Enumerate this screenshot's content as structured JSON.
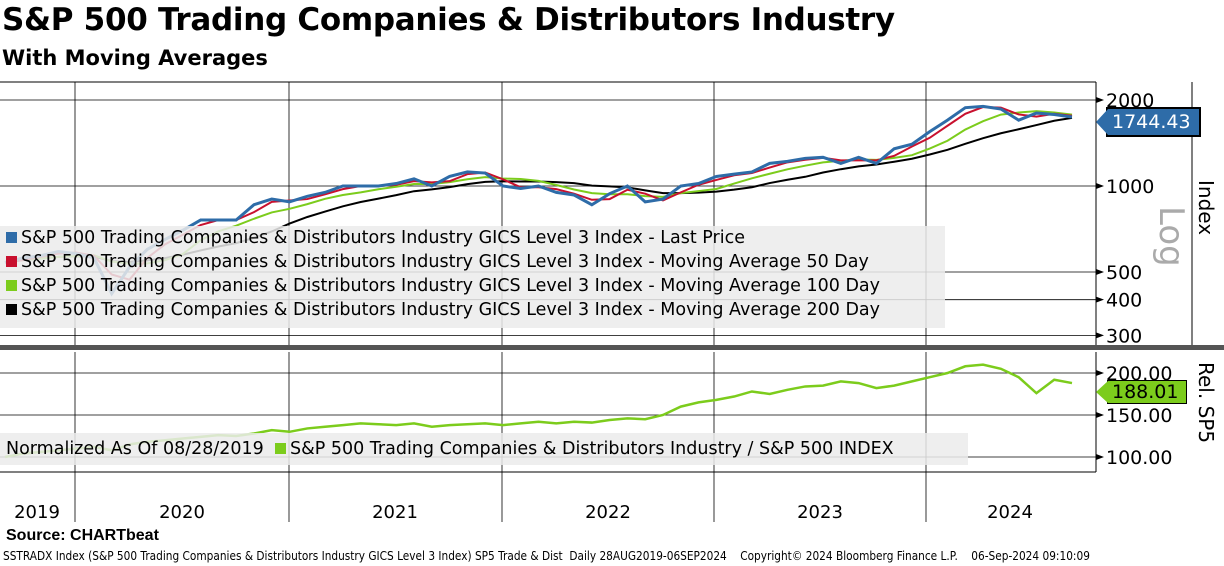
{
  "header": {
    "title": "S&P 500 Trading Companies & Distributors Industry",
    "subtitle": "With Moving Averages"
  },
  "colors": {
    "price": "#2e6ca8",
    "ma50": "#c8102e",
    "ma100": "#7ccc1c",
    "ma200": "#000000",
    "rel": "#7ccc1c"
  },
  "chart_data": [
    {
      "type": "line",
      "scale": "log",
      "ylabel": "Index",
      "scale_label": "Log",
      "yticks": [
        300,
        400,
        500,
        1000,
        2000
      ],
      "ylim": [
        280,
        2150
      ],
      "x": [
        "2019-09",
        "2019-10",
        "2019-11",
        "2019-12",
        "2020-01",
        "2020-02",
        "2020-03",
        "2020-04",
        "2020-05",
        "2020-06",
        "2020-07",
        "2020-08",
        "2020-09",
        "2020-10",
        "2020-11",
        "2020-12",
        "2021-01",
        "2021-02",
        "2021-03",
        "2021-04",
        "2021-05",
        "2021-06",
        "2021-07",
        "2021-08",
        "2021-09",
        "2021-10",
        "2021-11",
        "2021-12",
        "2022-01",
        "2022-02",
        "2022-03",
        "2022-04",
        "2022-05",
        "2022-06",
        "2022-07",
        "2022-08",
        "2022-09",
        "2022-10",
        "2022-11",
        "2022-12",
        "2023-01",
        "2023-02",
        "2023-03",
        "2023-04",
        "2023-05",
        "2023-06",
        "2023-07",
        "2023-08",
        "2023-09",
        "2023-10",
        "2023-11",
        "2023-12",
        "2024-01",
        "2024-02",
        "2024-03",
        "2024-04",
        "2024-05",
        "2024-06",
        "2024-07",
        "2024-08",
        "2024-09"
      ],
      "series": [
        {
          "name": "S&P 500 Trading Companies & Distributors Industry GICS Level 3 Index - Last Price",
          "key": "price",
          "values": [
            540,
            560,
            570,
            590,
            580,
            560,
            420,
            520,
            600,
            650,
            700,
            760,
            760,
            760,
            860,
            900,
            880,
            920,
            950,
            1000,
            1000,
            1000,
            1020,
            1060,
            1000,
            1080,
            1120,
            1110,
            1000,
            980,
            1000,
            950,
            930,
            860,
            940,
            1000,
            880,
            900,
            1000,
            1020,
            1080,
            1100,
            1120,
            1200,
            1220,
            1250,
            1260,
            1200,
            1260,
            1200,
            1350,
            1400,
            1550,
            1700,
            1880,
            1900,
            1860,
            1700,
            1800,
            1780,
            1744.43
          ]
        },
        {
          "name": "S&P 500 Trading Companies & Distributors Industry GICS Level 3 Index - Moving Average 50 Day",
          "key": "ma50",
          "window_months": 2.5
        },
        {
          "name": "S&P 500 Trading Companies & Distributors Industry GICS Level 3 Index - Moving Average 100 Day",
          "key": "ma100",
          "window_months": 5
        },
        {
          "name": "S&P 500 Trading Companies & Distributors Industry GICS Level 3 Index - Moving Average 200 Day",
          "key": "ma200",
          "window_months": 10
        }
      ],
      "last_value": "1744.43"
    },
    {
      "type": "line",
      "ylabel": "Rel. SP5",
      "yticks": [
        "100.00",
        "150.00",
        "200.00"
      ],
      "ylim": [
        95,
        215
      ],
      "legend_prefix": "Normalized As Of 08/28/2019",
      "series": [
        {
          "name": "S&P 500 Trading Companies & Distributors Industry / S&P 500 INDEX",
          "key": "rel",
          "values": [
            100,
            104,
            106,
            108,
            110,
            112,
            108,
            115,
            118,
            120,
            122,
            124,
            126,
            125,
            128,
            132,
            130,
            134,
            136,
            138,
            140,
            139,
            138,
            140,
            136,
            138,
            139,
            140,
            138,
            140,
            142,
            140,
            142,
            141,
            144,
            146,
            145,
            150,
            160,
            165,
            168,
            172,
            178,
            175,
            180,
            184,
            185,
            190,
            188,
            182,
            185,
            190,
            195,
            200,
            208,
            210,
            205,
            195,
            176,
            192,
            188.01
          ]
        }
      ],
      "last_value": "188.01"
    }
  ],
  "x_axis": {
    "years": [
      "2019",
      "2020",
      "2021",
      "2022",
      "2023",
      "2024"
    ]
  },
  "footer": {
    "source": "Source: CHARTbeat",
    "info": "SSTRADX Index (S&P 500 Trading Companies & Distributors Industry GICS Level 3 Index) SP5 Trade & Dist  Daily 28AUG2019-06SEP2024",
    "copyright": "Copyright© 2024 Bloomberg Finance L.P.",
    "timestamp": "06-Sep-2024 09:10:09"
  }
}
